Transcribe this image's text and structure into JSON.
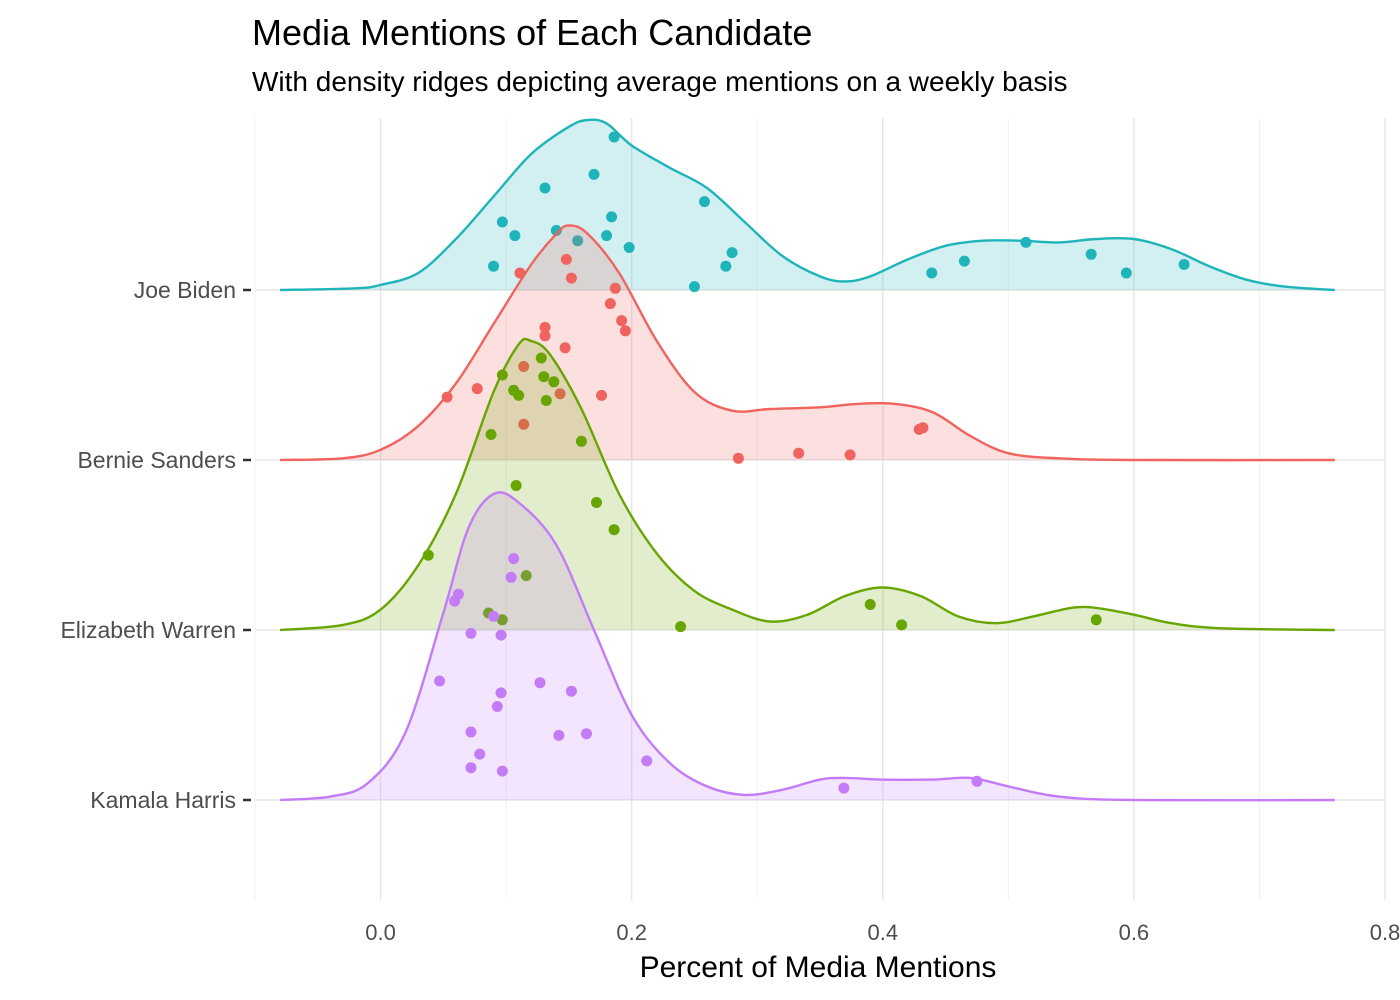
{
  "chart_data": {
    "type": "ridgeline",
    "title": "Media Mentions of Each Candidate",
    "subtitle": "With density ridges depicting average mentions on a weekly basis",
    "xlabel": "Percent of Media Mentions",
    "ylabel": "",
    "xlim": [
      -0.1,
      0.8
    ],
    "x_ticks": [
      0.0,
      0.2,
      0.4,
      0.6,
      0.8
    ],
    "x_tick_labels": [
      "0.0",
      "0.2",
      "0.4",
      "0.6",
      "0.8"
    ],
    "grid": true,
    "legend": "none",
    "series": [
      {
        "name": "Joe Biden",
        "color": "#1FB4BA",
        "points": [
          [
            0.186,
            0.9
          ],
          [
            0.17,
            0.68
          ],
          [
            0.131,
            0.6
          ],
          [
            0.258,
            0.52
          ],
          [
            0.184,
            0.43
          ],
          [
            0.097,
            0.4
          ],
          [
            0.14,
            0.35
          ],
          [
            0.107,
            0.32
          ],
          [
            0.18,
            0.32
          ],
          [
            0.157,
            0.29
          ],
          [
            0.198,
            0.25
          ],
          [
            0.28,
            0.22
          ],
          [
            0.09,
            0.14
          ],
          [
            0.275,
            0.14
          ],
          [
            0.25,
            0.02
          ],
          [
            0.514,
            0.28
          ],
          [
            0.566,
            0.21
          ],
          [
            0.465,
            0.17
          ],
          [
            0.64,
            0.15
          ],
          [
            0.439,
            0.1
          ],
          [
            0.594,
            0.1
          ]
        ],
        "density": [
          [
            -0.08,
            0.0
          ],
          [
            -0.02,
            0.01
          ],
          [
            0.0,
            0.03
          ],
          [
            0.03,
            0.1
          ],
          [
            0.06,
            0.3
          ],
          [
            0.09,
            0.55
          ],
          [
            0.12,
            0.8
          ],
          [
            0.15,
            0.96
          ],
          [
            0.165,
            1.0
          ],
          [
            0.18,
            0.98
          ],
          [
            0.2,
            0.85
          ],
          [
            0.23,
            0.72
          ],
          [
            0.26,
            0.6
          ],
          [
            0.29,
            0.4
          ],
          [
            0.32,
            0.2
          ],
          [
            0.35,
            0.08
          ],
          [
            0.37,
            0.05
          ],
          [
            0.39,
            0.08
          ],
          [
            0.42,
            0.18
          ],
          [
            0.45,
            0.26
          ],
          [
            0.48,
            0.29
          ],
          [
            0.51,
            0.29
          ],
          [
            0.54,
            0.28
          ],
          [
            0.57,
            0.3
          ],
          [
            0.6,
            0.3
          ],
          [
            0.63,
            0.24
          ],
          [
            0.66,
            0.14
          ],
          [
            0.69,
            0.06
          ],
          [
            0.72,
            0.02
          ],
          [
            0.76,
            0.0
          ]
        ]
      },
      {
        "name": "Bernie Sanders",
        "color": "#F0635E",
        "points": [
          [
            0.148,
            1.18
          ],
          [
            0.111,
            1.1
          ],
          [
            0.152,
            1.07
          ],
          [
            0.187,
            1.01
          ],
          [
            0.183,
            0.92
          ],
          [
            0.192,
            0.82
          ],
          [
            0.131,
            0.78
          ],
          [
            0.195,
            0.76
          ],
          [
            0.131,
            0.73
          ],
          [
            0.147,
            0.66
          ],
          [
            0.114,
            0.55
          ],
          [
            0.077,
            0.42
          ],
          [
            0.053,
            0.37
          ],
          [
            0.143,
            0.39
          ],
          [
            0.176,
            0.38
          ],
          [
            0.114,
            0.21
          ],
          [
            0.429,
            0.18
          ],
          [
            0.432,
            0.19
          ],
          [
            0.285,
            0.01
          ],
          [
            0.333,
            0.04
          ],
          [
            0.374,
            0.03
          ]
        ],
        "density": [
          [
            -0.08,
            0.0
          ],
          [
            -0.03,
            0.01
          ],
          [
            0.0,
            0.06
          ],
          [
            0.03,
            0.2
          ],
          [
            0.06,
            0.45
          ],
          [
            0.09,
            0.8
          ],
          [
            0.12,
            1.15
          ],
          [
            0.14,
            1.33
          ],
          [
            0.15,
            1.38
          ],
          [
            0.165,
            1.33
          ],
          [
            0.19,
            1.1
          ],
          [
            0.22,
            0.7
          ],
          [
            0.25,
            0.4
          ],
          [
            0.28,
            0.29
          ],
          [
            0.31,
            0.3
          ],
          [
            0.35,
            0.31
          ],
          [
            0.38,
            0.33
          ],
          [
            0.41,
            0.33
          ],
          [
            0.44,
            0.28
          ],
          [
            0.47,
            0.14
          ],
          [
            0.5,
            0.04
          ],
          [
            0.54,
            0.01
          ],
          [
            0.6,
            0.0
          ],
          [
            0.76,
            0.0
          ]
        ]
      },
      {
        "name": "Elizabeth Warren",
        "color": "#68A500",
        "points": [
          [
            0.128,
            1.6
          ],
          [
            0.097,
            1.5
          ],
          [
            0.13,
            1.49
          ],
          [
            0.138,
            1.46
          ],
          [
            0.106,
            1.41
          ],
          [
            0.11,
            1.38
          ],
          [
            0.132,
            1.35
          ],
          [
            0.088,
            1.15
          ],
          [
            0.16,
            1.11
          ],
          [
            0.108,
            0.85
          ],
          [
            0.172,
            0.75
          ],
          [
            0.186,
            0.59
          ],
          [
            0.038,
            0.44
          ],
          [
            0.116,
            0.32
          ],
          [
            0.086,
            0.1
          ],
          [
            0.097,
            0.06
          ],
          [
            0.239,
            0.02
          ],
          [
            0.39,
            0.15
          ],
          [
            0.415,
            0.03
          ],
          [
            0.57,
            0.06
          ]
        ],
        "density": [
          [
            -0.08,
            0.0
          ],
          [
            -0.03,
            0.03
          ],
          [
            0.0,
            0.12
          ],
          [
            0.03,
            0.38
          ],
          [
            0.06,
            0.8
          ],
          [
            0.09,
            1.4
          ],
          [
            0.11,
            1.68
          ],
          [
            0.12,
            1.7
          ],
          [
            0.135,
            1.62
          ],
          [
            0.16,
            1.3
          ],
          [
            0.19,
            0.8
          ],
          [
            0.22,
            0.45
          ],
          [
            0.25,
            0.23
          ],
          [
            0.28,
            0.12
          ],
          [
            0.31,
            0.05
          ],
          [
            0.34,
            0.09
          ],
          [
            0.37,
            0.2
          ],
          [
            0.4,
            0.25
          ],
          [
            0.43,
            0.2
          ],
          [
            0.46,
            0.08
          ],
          [
            0.49,
            0.04
          ],
          [
            0.52,
            0.08
          ],
          [
            0.55,
            0.13
          ],
          [
            0.57,
            0.13
          ],
          [
            0.6,
            0.09
          ],
          [
            0.63,
            0.04
          ],
          [
            0.67,
            0.01
          ],
          [
            0.76,
            0.0
          ]
        ]
      },
      {
        "name": "Kamala Harris",
        "color": "#C37BF7",
        "points": [
          [
            0.106,
            1.42
          ],
          [
            0.104,
            1.31
          ],
          [
            0.062,
            1.21
          ],
          [
            0.059,
            1.17
          ],
          [
            0.09,
            1.08
          ],
          [
            0.072,
            0.98
          ],
          [
            0.096,
            0.97
          ],
          [
            0.047,
            0.7
          ],
          [
            0.127,
            0.69
          ],
          [
            0.096,
            0.63
          ],
          [
            0.152,
            0.64
          ],
          [
            0.093,
            0.55
          ],
          [
            0.072,
            0.4
          ],
          [
            0.164,
            0.39
          ],
          [
            0.142,
            0.38
          ],
          [
            0.079,
            0.27
          ],
          [
            0.212,
            0.23
          ],
          [
            0.072,
            0.19
          ],
          [
            0.097,
            0.17
          ],
          [
            0.369,
            0.07
          ],
          [
            0.475,
            0.11
          ]
        ],
        "density": [
          [
            -0.08,
            0.0
          ],
          [
            -0.04,
            0.02
          ],
          [
            -0.01,
            0.1
          ],
          [
            0.02,
            0.4
          ],
          [
            0.05,
            1.1
          ],
          [
            0.07,
            1.6
          ],
          [
            0.09,
            1.8
          ],
          [
            0.11,
            1.75
          ],
          [
            0.14,
            1.5
          ],
          [
            0.17,
            1.0
          ],
          [
            0.2,
            0.5
          ],
          [
            0.23,
            0.22
          ],
          [
            0.26,
            0.08
          ],
          [
            0.29,
            0.03
          ],
          [
            0.32,
            0.06
          ],
          [
            0.35,
            0.12
          ],
          [
            0.37,
            0.13
          ],
          [
            0.4,
            0.12
          ],
          [
            0.44,
            0.12
          ],
          [
            0.47,
            0.13
          ],
          [
            0.5,
            0.08
          ],
          [
            0.54,
            0.02
          ],
          [
            0.6,
            0.0
          ],
          [
            0.76,
            0.0
          ]
        ]
      }
    ]
  }
}
